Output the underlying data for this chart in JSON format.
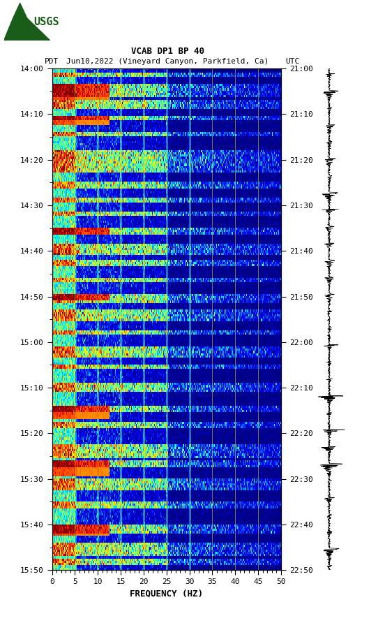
{
  "title_line1": "VCAB DP1 BP 40",
  "title_line2_pdt": "PDT",
  "title_line2_date": "Jun10,2022 (Vineyard Canyon, Parkfield, Ca)",
  "title_line2_utc": "UTC",
  "xlabel": "FREQUENCY (HZ)",
  "freq_min": 0,
  "freq_max": 50,
  "left_yticks": [
    "14:00",
    "14:10",
    "14:20",
    "14:30",
    "14:40",
    "14:50",
    "15:00",
    "15:10",
    "15:20",
    "15:30",
    "15:40",
    "15:50"
  ],
  "right_yticks": [
    "21:00",
    "21:10",
    "21:20",
    "21:30",
    "21:40",
    "21:50",
    "22:00",
    "22:10",
    "22:20",
    "22:30",
    "22:40",
    "22:50"
  ],
  "freq_ticks": [
    0,
    5,
    10,
    15,
    20,
    25,
    30,
    35,
    40,
    45,
    50
  ],
  "vgrid_freqs": [
    5,
    10,
    15,
    20,
    25,
    30,
    35,
    40,
    45
  ],
  "colormap": "jet",
  "bg_color": "#ffffff",
  "spectrogram_seed": 42,
  "waveform_seed": 7,
  "num_time_bins": 220,
  "num_freq_bins": 400,
  "usgs_color": "#1a5c1a",
  "tick_fontsize": 8,
  "label_fontsize": 9
}
